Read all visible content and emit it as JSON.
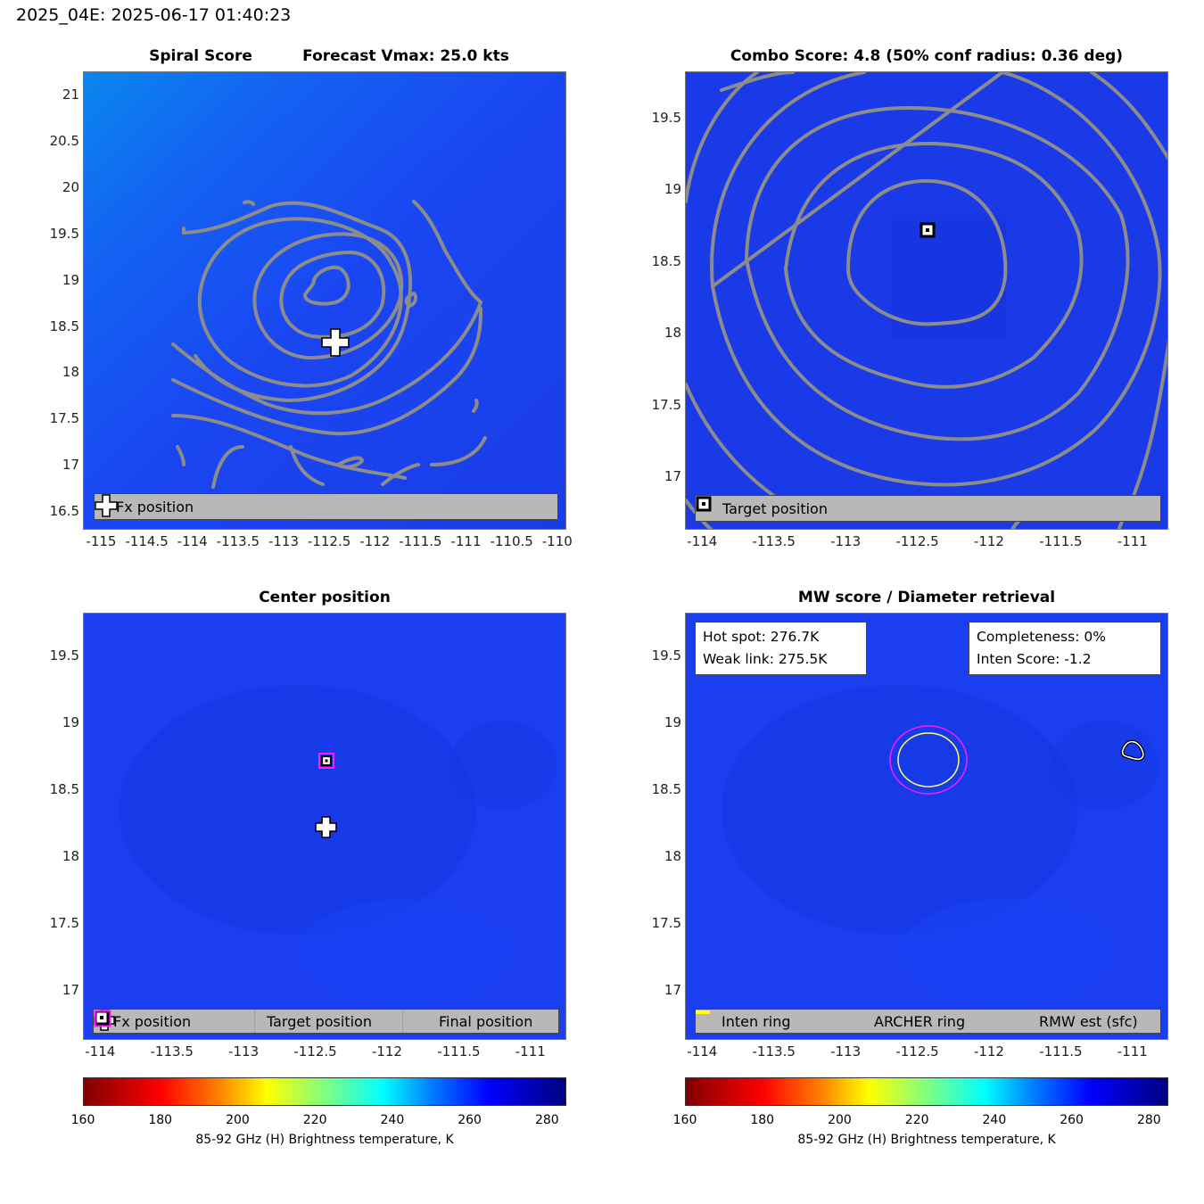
{
  "figure_title": "2025_04E: 2025-06-17 01:40:23",
  "colors": {
    "background_blue": "#1a3cf0",
    "contour_gray": "#8c8c8c",
    "legend_gray": "#b8b8b8",
    "final_magenta": "#ff1aff",
    "rmw_yellow": "#ffff00"
  },
  "chart_data": [
    {
      "type": "heatmap",
      "title": "Spiral Score",
      "subtitle": "Forecast Vmax: 25.0 kts",
      "xlim": [
        -115.2,
        -109.9
      ],
      "ylim": [
        16.3,
        21.25
      ],
      "xticks": [
        "-115",
        "-114.5",
        "-114",
        "-113.5",
        "-113",
        "-112.5",
        "-112",
        "-111.5",
        "-111",
        "-110.5",
        "-110"
      ],
      "yticks": [
        "21",
        "20.5",
        "20",
        "19.5",
        "19",
        "18.5",
        "18",
        "17.5",
        "17",
        "16.5"
      ],
      "markers": [
        {
          "name": "Fx position",
          "symbol": "plus",
          "x": -112.55,
          "y": 18.22
        }
      ],
      "legend": [
        "Fx position"
      ],
      "legend_location": "bottom"
    },
    {
      "type": "heatmap",
      "title": "Combo Score: 4.8  (50% conf radius: 0.36 deg)",
      "xlim": [
        -114.12,
        -110.75
      ],
      "ylim": [
        16.63,
        19.82
      ],
      "xticks": [
        "-114",
        "-113.5",
        "-113",
        "-112.5",
        "-112",
        "-111.5",
        "-111"
      ],
      "yticks": [
        "19.5",
        "19",
        "18.5",
        "18",
        "17.5",
        "17"
      ],
      "markers": [
        {
          "name": "Target position",
          "symbol": "square",
          "x": -112.44,
          "y": 18.73
        }
      ],
      "legend": [
        "Target position"
      ],
      "legend_location": "bottom"
    },
    {
      "type": "heatmap",
      "title": "Center position",
      "xlim": [
        -114.12,
        -110.75
      ],
      "ylim": [
        16.63,
        19.82
      ],
      "xticks": [
        "-114",
        "-113.5",
        "-113",
        "-112.5",
        "-112",
        "-111.5",
        "-111"
      ],
      "yticks": [
        "19.5",
        "19",
        "18.5",
        "18",
        "17.5",
        "17"
      ],
      "markers": [
        {
          "name": "Target position",
          "symbol": "square",
          "x": -112.44,
          "y": 18.73
        },
        {
          "name": "Final position",
          "symbol": "magenta-square",
          "x": -112.44,
          "y": 18.73
        },
        {
          "name": "Fx position",
          "symbol": "plus",
          "x": -112.44,
          "y": 18.23
        }
      ],
      "legend": [
        "Fx position",
        "Target position",
        "Final position"
      ],
      "legend_location": "bottom"
    },
    {
      "type": "heatmap",
      "title": "MW score / Diameter retrieval",
      "xlim": [
        -114.12,
        -110.75
      ],
      "ylim": [
        16.63,
        19.82
      ],
      "xticks": [
        "-114",
        "-113.5",
        "-113",
        "-112.5",
        "-112",
        "-111.5",
        "-111"
      ],
      "yticks": [
        "19.5",
        "19",
        "18.5",
        "18",
        "17.5",
        "17"
      ],
      "rings": [
        {
          "name": "ARCHER ring",
          "x": -112.44,
          "y": 18.73,
          "radius_deg": 0.27,
          "color": "#ff1aff"
        },
        {
          "name": "RMW est (sfc)",
          "x": -112.44,
          "y": 18.73,
          "radius_deg": 0.215,
          "color": "#ffff00"
        }
      ],
      "info_left": [
        "Hot spot: 276.7K",
        "Weak link: 275.5K"
      ],
      "info_right": [
        "Completeness: 0%",
        "Inten Score: -1.2"
      ],
      "legend": [
        "Inten ring",
        "ARCHER ring",
        "RMW est (sfc)"
      ],
      "legend_location": "bottom"
    }
  ],
  "colorbar": {
    "range": [
      160,
      285
    ],
    "ticks": [
      "160",
      "180",
      "200",
      "220",
      "240",
      "260",
      "280"
    ],
    "label": "85-92 GHz (H) Brightness temperature, K"
  }
}
